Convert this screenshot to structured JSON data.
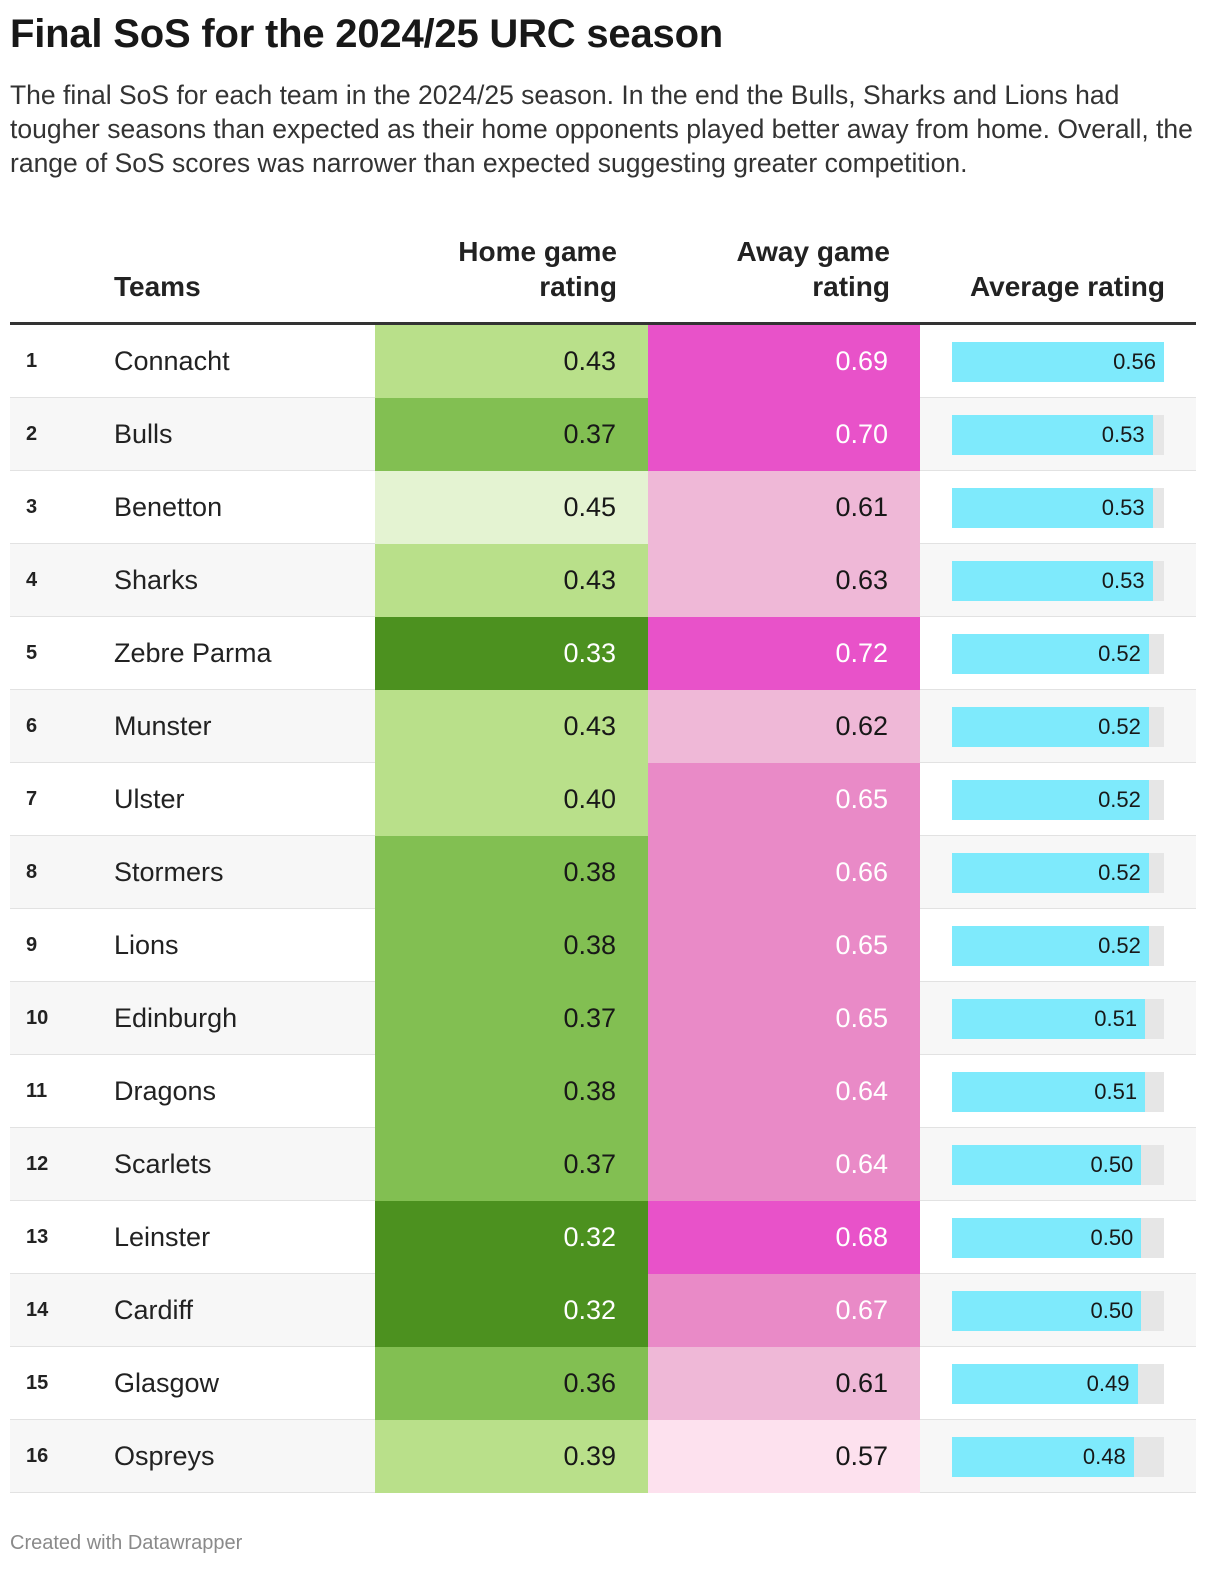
{
  "title": "Final SoS for the 2024/25 URC season",
  "description": "The final SoS for each team in the 2024/25 season. In the end the Bulls, Sharks and Lions had tougher seasons than expected as their home opponents played better away from home. Overall, the range of SoS scores was narrower than expected suggesting greater competition.",
  "footer": "Created with Datawrapper",
  "colors": {
    "home_scale": [
      "#e4f3d2",
      "#b9e08a",
      "#82bf52",
      "#4c911f"
    ],
    "away_scale": [
      "#fde1ee",
      "#efb8d7",
      "#e98ac7",
      "#e852c9"
    ],
    "avg_bar": "#7eeafc",
    "avg_track": "#e6e6e6"
  },
  "chart_data": {
    "type": "table",
    "title": "Final SoS for the 2024/25 URC season",
    "columns": [
      "",
      "Teams",
      "Home game rating",
      "Away game rating",
      "Average rating"
    ],
    "avg_range": [
      0,
      0.56
    ],
    "rows": [
      {
        "rank": "1",
        "team": "Connacht",
        "home": "0.43",
        "away": "0.69",
        "avg": "0.56"
      },
      {
        "rank": "2",
        "team": "Bulls",
        "home": "0.37",
        "away": "0.70",
        "avg": "0.53"
      },
      {
        "rank": "3",
        "team": "Benetton",
        "home": "0.45",
        "away": "0.61",
        "avg": "0.53"
      },
      {
        "rank": "4",
        "team": "Sharks",
        "home": "0.43",
        "away": "0.63",
        "avg": "0.53"
      },
      {
        "rank": "5",
        "team": "Zebre Parma",
        "home": "0.33",
        "away": "0.72",
        "avg": "0.52"
      },
      {
        "rank": "6",
        "team": "Munster",
        "home": "0.43",
        "away": "0.62",
        "avg": "0.52"
      },
      {
        "rank": "7",
        "team": "Ulster",
        "home": "0.40",
        "away": "0.65",
        "avg": "0.52"
      },
      {
        "rank": "8",
        "team": "Stormers",
        "home": "0.38",
        "away": "0.66",
        "avg": "0.52"
      },
      {
        "rank": "9",
        "team": "Lions",
        "home": "0.38",
        "away": "0.65",
        "avg": "0.52"
      },
      {
        "rank": "10",
        "team": "Edinburgh",
        "home": "0.37",
        "away": "0.65",
        "avg": "0.51"
      },
      {
        "rank": "11",
        "team": "Dragons",
        "home": "0.38",
        "away": "0.64",
        "avg": "0.51"
      },
      {
        "rank": "12",
        "team": "Scarlets",
        "home": "0.37",
        "away": "0.64",
        "avg": "0.50"
      },
      {
        "rank": "13",
        "team": "Leinster",
        "home": "0.32",
        "away": "0.68",
        "avg": "0.50"
      },
      {
        "rank": "14",
        "team": "Cardiff",
        "home": "0.32",
        "away": "0.67",
        "avg": "0.50"
      },
      {
        "rank": "15",
        "team": "Glasgow",
        "home": "0.36",
        "away": "0.61",
        "avg": "0.49"
      },
      {
        "rank": "16",
        "team": "Ospreys",
        "home": "0.39",
        "away": "0.57",
        "avg": "0.48"
      }
    ]
  }
}
